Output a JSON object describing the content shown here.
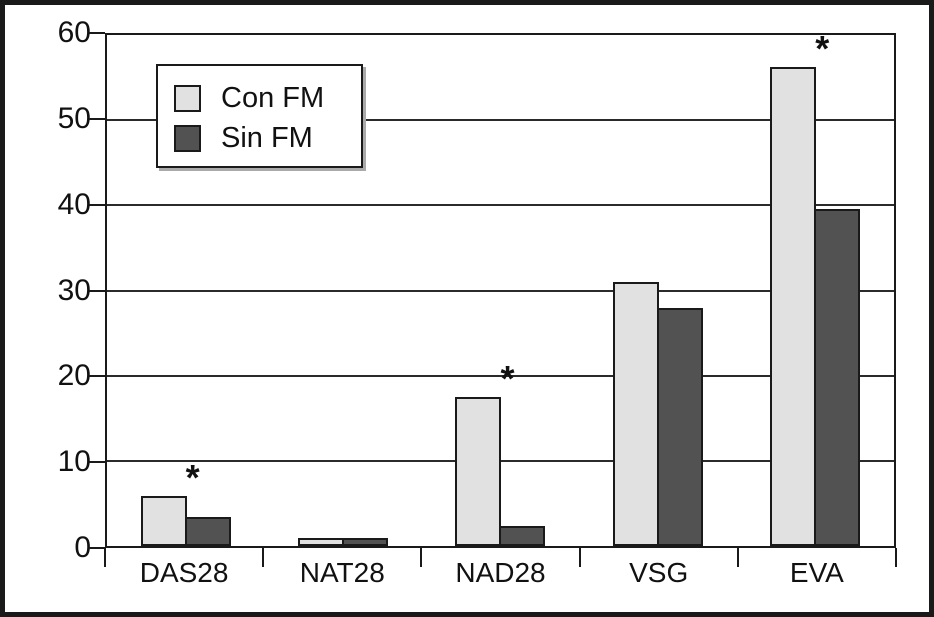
{
  "figure": {
    "background_color": "#ffffff",
    "frame_color": "#1a1a1a"
  },
  "chart_data": {
    "type": "bar",
    "categories": [
      "DAS28",
      "NAT28",
      "NAD28",
      "VSG",
      "EVA"
    ],
    "series": [
      {
        "name": "Con FM",
        "color": "#e1e1e1",
        "values": [
          5.9,
          0.9,
          17.5,
          31,
          56.2
        ]
      },
      {
        "name": "Sin FM",
        "color": "#525252",
        "values": [
          3.4,
          0.9,
          2.3,
          28,
          39.6
        ]
      }
    ],
    "significance": {
      "symbol": "*",
      "marked_categories": [
        "DAS28",
        "NAD28",
        "EVA"
      ],
      "applies_to_series": "Con FM"
    },
    "y_axis": {
      "min": 0,
      "max": 60,
      "tick_interval": 10,
      "ticks": [
        0,
        10,
        20,
        30,
        40,
        50,
        60
      ]
    },
    "x_axis": {
      "tick_marks_at_category_boundaries": true
    },
    "legend": {
      "position": "top-left",
      "entries": [
        "Con FM",
        "Sin FM"
      ]
    },
    "grid": "horizontal"
  }
}
